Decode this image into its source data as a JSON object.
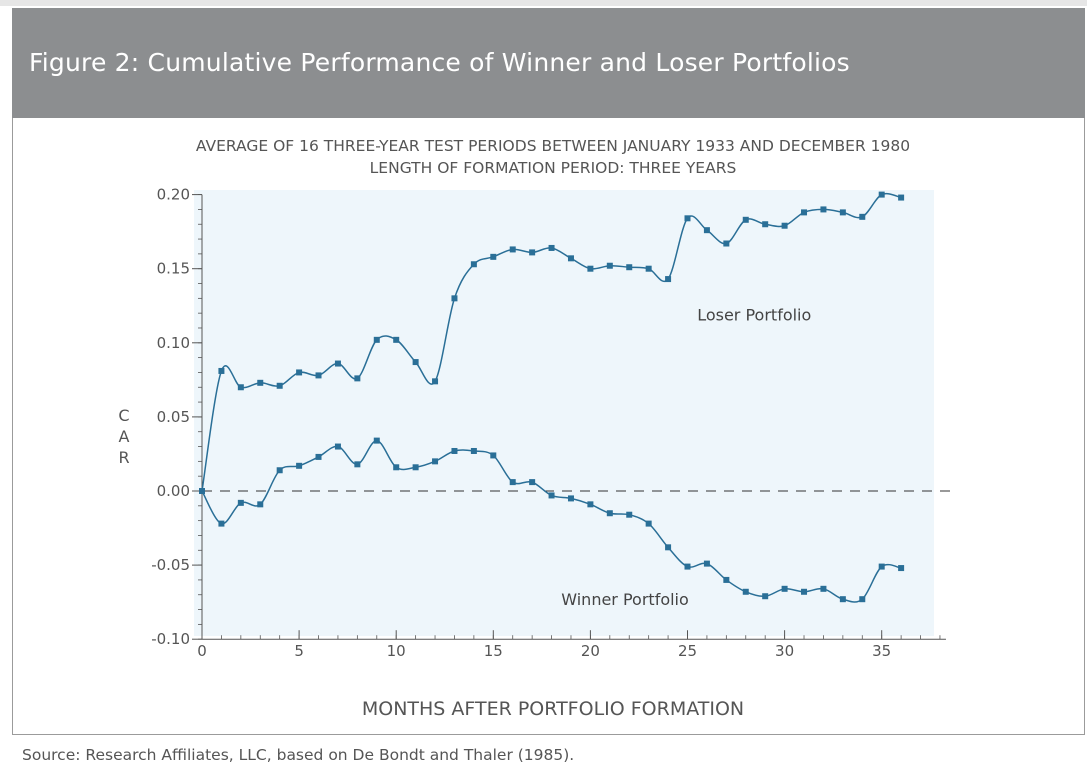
{
  "figure": {
    "title": "Figure 2:  Cumulative Performance of Winner and Loser Portfolios",
    "source": "Source: Research Affiliates, LLC, based on De Bondt and Thaler (1985)."
  },
  "colors": {
    "header_bg": "#8c8e90",
    "plot_bg": "#eef6fb",
    "series": "#2a6f97",
    "axis": "#555555"
  },
  "chart_data": {
    "type": "line",
    "subtitle_lines": [
      "AVERAGE OF 16 THREE-YEAR TEST PERIODS BETWEEN JANUARY 1933 AND DECEMBER 1980",
      "LENGTH OF FORMATION PERIOD: THREE YEARS"
    ],
    "xlabel": "MONTHS AFTER PORTFOLIO FORMATION",
    "ylabel": "CAR",
    "xlim": [
      0,
      38
    ],
    "ylim": [
      -0.1,
      0.2
    ],
    "xticks": [
      0,
      5,
      10,
      15,
      20,
      25,
      30,
      35
    ],
    "xtick_labels": [
      "0",
      "5",
      "10",
      "15",
      "20",
      "25",
      "30",
      "35"
    ],
    "yticks": [
      0.2,
      0.15,
      0.1,
      0.05,
      0.0,
      -0.05,
      -0.1
    ],
    "ytick_labels": [
      "0.20",
      "0.15",
      "0.10",
      "0.05",
      "0.00",
      "-0.05",
      "-0.10"
    ],
    "reference_line": 0.0,
    "series": [
      {
        "name": "Loser Portfolio",
        "label": "Loser Portfolio",
        "label_at": [
          25.5,
          0.115
        ],
        "x": [
          0,
          1,
          2,
          3,
          4,
          5,
          6,
          7,
          8,
          9,
          10,
          11,
          12,
          13,
          14,
          15,
          16,
          17,
          18,
          19,
          20,
          21,
          22,
          23,
          24,
          25,
          26,
          27,
          28,
          29,
          30,
          31,
          32,
          33,
          34,
          35,
          36
        ],
        "values": [
          0.0,
          0.081,
          0.07,
          0.073,
          0.071,
          0.08,
          0.078,
          0.086,
          0.076,
          0.102,
          0.102,
          0.087,
          0.074,
          0.13,
          0.153,
          0.158,
          0.163,
          0.161,
          0.164,
          0.157,
          0.15,
          0.152,
          0.151,
          0.15,
          0.143,
          0.184,
          0.176,
          0.167,
          0.183,
          0.18,
          0.179,
          0.188,
          0.19,
          0.188,
          0.185,
          0.2,
          0.198
        ]
      },
      {
        "name": "Winner Portfolio",
        "label": "Winner Portfolio",
        "label_at": [
          18.5,
          -0.077
        ],
        "x": [
          0,
          1,
          2,
          3,
          4,
          5,
          6,
          7,
          8,
          9,
          10,
          11,
          12,
          13,
          14,
          15,
          16,
          17,
          18,
          19,
          20,
          21,
          22,
          23,
          24,
          25,
          26,
          27,
          28,
          29,
          30,
          31,
          32,
          33,
          34,
          35,
          36
        ],
        "values": [
          0.0,
          -0.022,
          -0.008,
          -0.009,
          0.014,
          0.017,
          0.023,
          0.03,
          0.018,
          0.034,
          0.016,
          0.016,
          0.02,
          0.027,
          0.027,
          0.024,
          0.006,
          0.006,
          -0.003,
          -0.005,
          -0.009,
          -0.015,
          -0.016,
          -0.022,
          -0.038,
          -0.051,
          -0.049,
          -0.06,
          -0.068,
          -0.071,
          -0.066,
          -0.068,
          -0.066,
          -0.073,
          -0.073,
          -0.051,
          -0.052
        ]
      }
    ]
  }
}
